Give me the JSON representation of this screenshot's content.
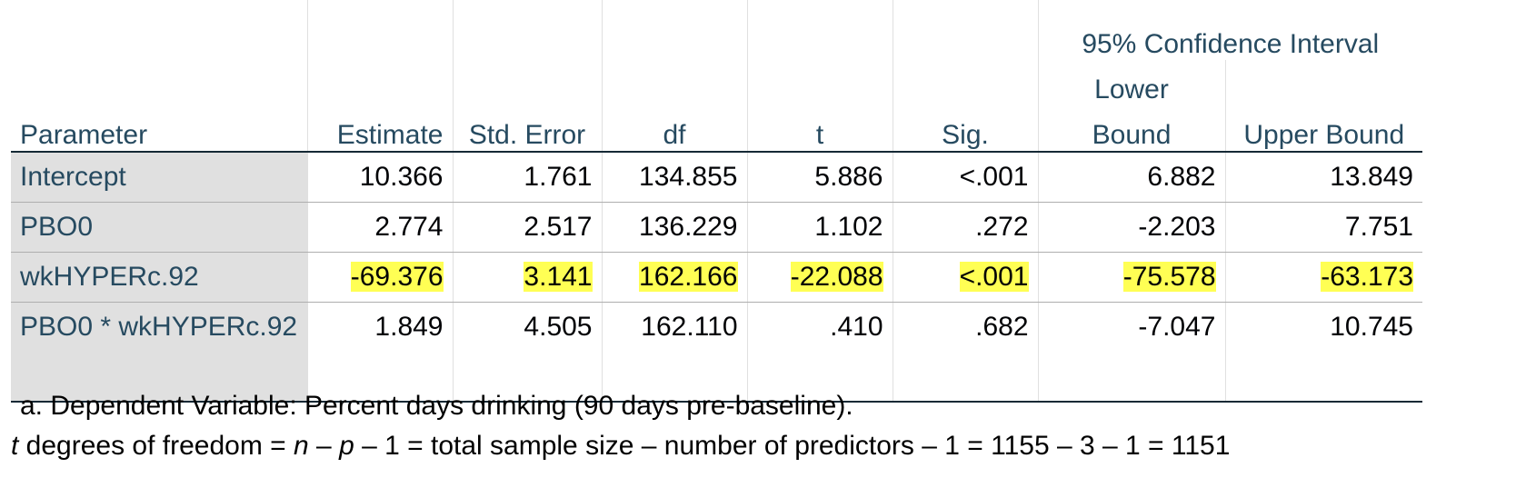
{
  "table": {
    "headers": {
      "ci_group": "95% Confidence Interval",
      "parameter": "Parameter",
      "estimate": "Estimate",
      "std_error": "Std. Error",
      "df": "df",
      "t": "t",
      "sig": "Sig.",
      "lower_line1": "Lower",
      "lower_line2": "Bound",
      "upper": "Upper Bound"
    },
    "rows": [
      {
        "parameter": "Intercept",
        "estimate": "10.366",
        "std_error": "1.761",
        "df": "134.855",
        "t": "5.886",
        "sig": "<.001",
        "lower": "6.882",
        "upper": "13.849",
        "highlighted": false
      },
      {
        "parameter": "PBO0",
        "estimate": "2.774",
        "std_error": "2.517",
        "df": "136.229",
        "t": "1.102",
        "sig": ".272",
        "lower": "-2.203",
        "upper": "7.751",
        "highlighted": false
      },
      {
        "parameter": "wkHYPERc.92",
        "estimate": "-69.376",
        "std_error": "3.141",
        "df": "162.166",
        "t": "-22.088",
        "sig": "<.001",
        "lower": "-75.578",
        "upper": "-63.173",
        "highlighted": true
      },
      {
        "parameter": "PBO0 * wkHYPERc.92",
        "estimate": "1.849",
        "std_error": "4.505",
        "df": "162.110",
        "t": ".410",
        "sig": ".682",
        "lower": "-7.047",
        "upper": "10.745",
        "highlighted": false
      }
    ],
    "highlight_color": "#ffff54",
    "header_text_color": "#264a60"
  },
  "footnote": "a. Dependent Variable: Percent days drinking (90 days pre-baseline).",
  "formula": {
    "t_var": "t",
    "part1": " degrees of freedom = ",
    "n_var": "n",
    "part2": " – ",
    "p_var": "p",
    "part3": " – 1 = total sample size – number of predictors – 1 = 1155 – 3 – 1 = 1151"
  }
}
